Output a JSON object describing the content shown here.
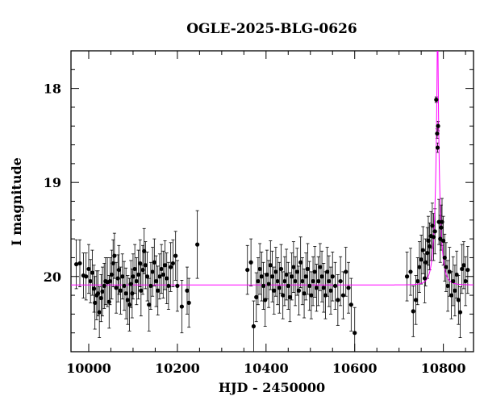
{
  "chart_data": {
    "type": "scatter",
    "title": "OGLE-2025-BLG-0626",
    "xlabel": "HJD - 2450000",
    "ylabel": "I magnitude",
    "xlim": [
      9960,
      10868
    ],
    "ylim": [
      20.8,
      17.6
    ],
    "y_inverted": true,
    "grid": false,
    "xticks": [
      10000,
      10200,
      10400,
      10600,
      10800
    ],
    "yticks": [
      18,
      19,
      20
    ],
    "xtick_labels": [
      "10000",
      "10200",
      "10400",
      "10600",
      "10800"
    ],
    "ytick_labels": [
      "18",
      "19",
      "20"
    ],
    "colors": {
      "points": "#000000",
      "model": "#ff00ff"
    },
    "points": [
      {
        "x": 9972,
        "y": 19.87,
        "e": 0.26
      },
      {
        "x": 9980,
        "y": 19.86,
        "e": 0.25
      },
      {
        "x": 9988,
        "y": 19.99,
        "e": 0.24
      },
      {
        "x": 9994,
        "y": 20.0,
        "e": 0.25
      },
      {
        "x": 10000,
        "y": 19.92,
        "e": 0.26
      },
      {
        "x": 10004,
        "y": 20.05,
        "e": 0.23
      },
      {
        "x": 10008,
        "y": 19.96,
        "e": 0.24
      },
      {
        "x": 10012,
        "y": 20.13,
        "e": 0.25
      },
      {
        "x": 10014,
        "y": 20.28,
        "e": 0.28
      },
      {
        "x": 10018,
        "y": 20.2,
        "e": 0.26
      },
      {
        "x": 10021,
        "y": 20.18,
        "e": 0.24
      },
      {
        "x": 10024,
        "y": 20.38,
        "e": 0.27
      },
      {
        "x": 10028,
        "y": 20.23,
        "e": 0.25
      },
      {
        "x": 10031,
        "y": 20.16,
        "e": 0.26
      },
      {
        "x": 10035,
        "y": 20.1,
        "e": 0.24
      },
      {
        "x": 10038,
        "y": 20.05,
        "e": 0.25
      },
      {
        "x": 10042,
        "y": 20.06,
        "e": 0.26
      },
      {
        "x": 10046,
        "y": 20.27,
        "e": 0.28
      },
      {
        "x": 10048,
        "y": 20.05,
        "e": 0.25
      },
      {
        "x": 10052,
        "y": 19.98,
        "e": 0.26
      },
      {
        "x": 10055,
        "y": 19.86,
        "e": 0.25
      },
      {
        "x": 10058,
        "y": 19.78,
        "e": 0.24
      },
      {
        "x": 10062,
        "y": 20.12,
        "e": 0.27
      },
      {
        "x": 10066,
        "y": 20.02,
        "e": 0.25
      },
      {
        "x": 10068,
        "y": 19.93,
        "e": 0.26
      },
      {
        "x": 10072,
        "y": 20.15,
        "e": 0.25
      },
      {
        "x": 10076,
        "y": 20.0,
        "e": 0.24
      },
      {
        "x": 10080,
        "y": 20.1,
        "e": 0.26
      },
      {
        "x": 10084,
        "y": 20.18,
        "e": 0.27
      },
      {
        "x": 10088,
        "y": 20.25,
        "e": 0.26
      },
      {
        "x": 10092,
        "y": 20.3,
        "e": 0.28
      },
      {
        "x": 10095,
        "y": 20.08,
        "e": 0.25
      },
      {
        "x": 10098,
        "y": 20.18,
        "e": 0.26
      },
      {
        "x": 10100,
        "y": 20.0,
        "e": 0.24
      },
      {
        "x": 10104,
        "y": 19.92,
        "e": 0.26
      },
      {
        "x": 10108,
        "y": 20.05,
        "e": 0.25
      },
      {
        "x": 10112,
        "y": 19.98,
        "e": 0.26
      },
      {
        "x": 10116,
        "y": 19.86,
        "e": 0.25
      },
      {
        "x": 10118,
        "y": 20.15,
        "e": 0.27
      },
      {
        "x": 10122,
        "y": 19.93,
        "e": 0.26
      },
      {
        "x": 10125,
        "y": 19.73,
        "e": 0.24
      },
      {
        "x": 10128,
        "y": 19.88,
        "e": 0.25
      },
      {
        "x": 10132,
        "y": 20.0,
        "e": 0.26
      },
      {
        "x": 10136,
        "y": 20.3,
        "e": 0.28
      },
      {
        "x": 10140,
        "y": 20.1,
        "e": 0.25
      },
      {
        "x": 10144,
        "y": 19.95,
        "e": 0.26
      },
      {
        "x": 10148,
        "y": 19.85,
        "e": 0.25
      },
      {
        "x": 10152,
        "y": 20.05,
        "e": 0.27
      },
      {
        "x": 10156,
        "y": 20.15,
        "e": 0.26
      },
      {
        "x": 10160,
        "y": 20.0,
        "e": 0.24
      },
      {
        "x": 10164,
        "y": 19.92,
        "e": 0.26
      },
      {
        "x": 10168,
        "y": 19.98,
        "e": 0.25
      },
      {
        "x": 10172,
        "y": 19.88,
        "e": 0.26
      },
      {
        "x": 10176,
        "y": 20.02,
        "e": 0.27
      },
      {
        "x": 10180,
        "y": 20.1,
        "e": 0.25
      },
      {
        "x": 10185,
        "y": 19.9,
        "e": 0.26
      },
      {
        "x": 10190,
        "y": 19.86,
        "e": 0.25
      },
      {
        "x": 10196,
        "y": 19.78,
        "e": 0.26
      },
      {
        "x": 10200,
        "y": 20.1,
        "e": 0.27
      },
      {
        "x": 10210,
        "y": 20.32,
        "e": 0.28
      },
      {
        "x": 10222,
        "y": 20.15,
        "e": 0.25
      },
      {
        "x": 10226,
        "y": 20.28,
        "e": 0.26
      },
      {
        "x": 10245,
        "y": 19.66,
        "e": 0.36
      },
      {
        "x": 10358,
        "y": 19.93,
        "e": 0.26
      },
      {
        "x": 10366,
        "y": 19.85,
        "e": 0.25
      },
      {
        "x": 10372,
        "y": 20.53,
        "e": 0.27
      },
      {
        "x": 10378,
        "y": 20.22,
        "e": 0.26
      },
      {
        "x": 10382,
        "y": 20.05,
        "e": 0.25
      },
      {
        "x": 10386,
        "y": 19.92,
        "e": 0.27
      },
      {
        "x": 10390,
        "y": 20.0,
        "e": 0.26
      },
      {
        "x": 10394,
        "y": 20.1,
        "e": 0.25
      },
      {
        "x": 10398,
        "y": 20.25,
        "e": 0.28
      },
      {
        "x": 10402,
        "y": 19.98,
        "e": 0.26
      },
      {
        "x": 10406,
        "y": 20.08,
        "e": 0.25
      },
      {
        "x": 10410,
        "y": 19.88,
        "e": 0.26
      },
      {
        "x": 10414,
        "y": 20.0,
        "e": 0.27
      },
      {
        "x": 10418,
        "y": 20.15,
        "e": 0.25
      },
      {
        "x": 10422,
        "y": 19.95,
        "e": 0.26
      },
      {
        "x": 10426,
        "y": 20.05,
        "e": 0.25
      },
      {
        "x": 10430,
        "y": 20.12,
        "e": 0.27
      },
      {
        "x": 10434,
        "y": 19.92,
        "e": 0.26
      },
      {
        "x": 10438,
        "y": 20.2,
        "e": 0.25
      },
      {
        "x": 10442,
        "y": 20.05,
        "e": 0.26
      },
      {
        "x": 10446,
        "y": 19.98,
        "e": 0.27
      },
      {
        "x": 10450,
        "y": 20.1,
        "e": 0.25
      },
      {
        "x": 10454,
        "y": 20.22,
        "e": 0.26
      },
      {
        "x": 10458,
        "y": 20.0,
        "e": 0.25
      },
      {
        "x": 10462,
        "y": 19.9,
        "e": 0.27
      },
      {
        "x": 10466,
        "y": 20.05,
        "e": 0.26
      },
      {
        "x": 10470,
        "y": 19.95,
        "e": 0.25
      },
      {
        "x": 10474,
        "y": 20.15,
        "e": 0.26
      },
      {
        "x": 10478,
        "y": 19.85,
        "e": 0.27
      },
      {
        "x": 10482,
        "y": 20.05,
        "e": 0.25
      },
      {
        "x": 10486,
        "y": 20.18,
        "e": 0.26
      },
      {
        "x": 10490,
        "y": 20.0,
        "e": 0.25
      },
      {
        "x": 10494,
        "y": 19.92,
        "e": 0.27
      },
      {
        "x": 10498,
        "y": 20.1,
        "e": 0.26
      },
      {
        "x": 10502,
        "y": 20.2,
        "e": 0.25
      },
      {
        "x": 10506,
        "y": 20.05,
        "e": 0.26
      },
      {
        "x": 10510,
        "y": 19.95,
        "e": 0.27
      },
      {
        "x": 10514,
        "y": 20.12,
        "e": 0.25
      },
      {
        "x": 10518,
        "y": 20.05,
        "e": 0.26
      },
      {
        "x": 10522,
        "y": 19.9,
        "e": 0.25
      },
      {
        "x": 10526,
        "y": 20.0,
        "e": 0.27
      },
      {
        "x": 10530,
        "y": 20.12,
        "e": 0.26
      },
      {
        "x": 10534,
        "y": 20.2,
        "e": 0.25
      },
      {
        "x": 10538,
        "y": 19.95,
        "e": 0.26
      },
      {
        "x": 10542,
        "y": 20.05,
        "e": 0.27
      },
      {
        "x": 10546,
        "y": 20.15,
        "e": 0.25
      },
      {
        "x": 10550,
        "y": 20.0,
        "e": 0.26
      },
      {
        "x": 10556,
        "y": 20.1,
        "e": 0.25
      },
      {
        "x": 10562,
        "y": 20.25,
        "e": 0.27
      },
      {
        "x": 10568,
        "y": 20.05,
        "e": 0.26
      },
      {
        "x": 10574,
        "y": 20.2,
        "e": 0.25
      },
      {
        "x": 10580,
        "y": 19.95,
        "e": 0.26
      },
      {
        "x": 10586,
        "y": 20.12,
        "e": 0.27
      },
      {
        "x": 10592,
        "y": 20.3,
        "e": 0.28
      },
      {
        "x": 10600,
        "y": 20.6,
        "e": 0.27
      },
      {
        "x": 10718,
        "y": 20.0,
        "e": 0.26
      },
      {
        "x": 10726,
        "y": 19.95,
        "e": 0.25
      },
      {
        "x": 10732,
        "y": 20.37,
        "e": 0.27
      },
      {
        "x": 10738,
        "y": 20.25,
        "e": 0.26
      },
      {
        "x": 10742,
        "y": 20.05,
        "e": 0.25
      },
      {
        "x": 10746,
        "y": 19.9,
        "e": 0.27
      },
      {
        "x": 10750,
        "y": 19.82,
        "e": 0.26
      },
      {
        "x": 10754,
        "y": 19.72,
        "e": 0.25
      },
      {
        "x": 10758,
        "y": 20.02,
        "e": 0.26
      },
      {
        "x": 10760,
        "y": 19.85,
        "e": 0.25
      },
      {
        "x": 10764,
        "y": 19.75,
        "e": 0.27
      },
      {
        "x": 10766,
        "y": 19.62,
        "e": 0.26
      },
      {
        "x": 10769,
        "y": 19.68,
        "e": 0.25
      },
      {
        "x": 10772,
        "y": 19.57,
        "e": 0.26
      },
      {
        "x": 10775,
        "y": 19.46,
        "e": 0.24
      },
      {
        "x": 10778,
        "y": 19.58,
        "e": 0.25
      },
      {
        "x": 10781,
        "y": 19.52,
        "e": 0.24
      },
      {
        "x": 10784,
        "y": 18.12,
        "e": 0.03
      },
      {
        "x": 10786,
        "y": 18.48,
        "e": 0.05
      },
      {
        "x": 10787,
        "y": 18.63,
        "e": 0.05
      },
      {
        "x": 10788,
        "y": 18.4,
        "e": 0.05
      },
      {
        "x": 10790,
        "y": 19.42,
        "e": 0.24
      },
      {
        "x": 10793,
        "y": 19.6,
        "e": 0.25
      },
      {
        "x": 10795,
        "y": 19.48,
        "e": 0.24
      },
      {
        "x": 10797,
        "y": 19.42,
        "e": 0.25
      },
      {
        "x": 10800,
        "y": 19.62,
        "e": 0.26
      },
      {
        "x": 10803,
        "y": 19.8,
        "e": 0.25
      },
      {
        "x": 10806,
        "y": 19.9,
        "e": 0.26
      },
      {
        "x": 10810,
        "y": 20.1,
        "e": 0.27
      },
      {
        "x": 10814,
        "y": 19.95,
        "e": 0.26
      },
      {
        "x": 10818,
        "y": 20.2,
        "e": 0.25
      },
      {
        "x": 10822,
        "y": 20.05,
        "e": 0.26
      },
      {
        "x": 10826,
        "y": 20.15,
        "e": 0.27
      },
      {
        "x": 10830,
        "y": 19.98,
        "e": 0.25
      },
      {
        "x": 10834,
        "y": 20.25,
        "e": 0.26
      },
      {
        "x": 10838,
        "y": 20.38,
        "e": 0.27
      },
      {
        "x": 10842,
        "y": 19.92,
        "e": 0.26
      },
      {
        "x": 10846,
        "y": 19.88,
        "e": 0.25
      },
      {
        "x": 10850,
        "y": 20.05,
        "e": 0.26
      },
      {
        "x": 10855,
        "y": 19.93,
        "e": 0.25
      }
    ],
    "model": {
      "baseline": 20.09,
      "t0": 10787,
      "u0": 0.072,
      "tE": 12
    }
  }
}
